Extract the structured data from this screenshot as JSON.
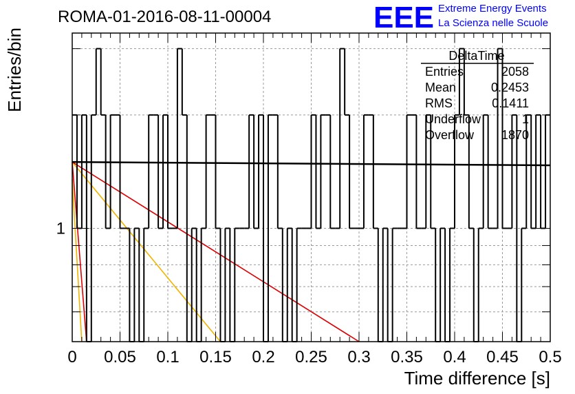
{
  "header": {
    "run_title": "ROMA-01-2016-08-11-00004",
    "logo_text": "EEE",
    "logo_line1": "Extreme Energy Events",
    "logo_line2": "La Scienza nelle Scuole"
  },
  "colors": {
    "histogram": "#000000",
    "fit_flat": "#000000",
    "fit_red": "#dd0000",
    "fit_orange": "#f0b400",
    "logo": "#0000ff",
    "grid": "#999999"
  },
  "stats_box": {
    "title": "DeltaTime",
    "rows": [
      {
        "label": "Entries",
        "value": "2058"
      },
      {
        "label": "Mean",
        "value": "0.2453"
      },
      {
        "label": "RMS",
        "value": "0.1411"
      },
      {
        "label": "Underflow",
        "value": "1"
      },
      {
        "label": "Overflow",
        "value": "1870"
      }
    ]
  },
  "chart_data": {
    "type": "histogram",
    "xlabel": "Time difference [s]",
    "ylabel": "Entries/bin",
    "xlim": [
      0,
      0.5
    ],
    "ylim": [
      0.5,
      3.3
    ],
    "log_y": true,
    "grid": true,
    "x_ticks": [
      "0",
      "0.05",
      "0.1",
      "0.15",
      "0.2",
      "0.25",
      "0.3",
      "0.35",
      "0.4",
      "0.45",
      "0.5"
    ],
    "y_tick_labels": [
      {
        "value": 1,
        "label": "1"
      }
    ],
    "bin_width": 0.005,
    "bin_values": [
      2,
      1,
      2,
      0,
      2,
      3,
      2,
      1,
      2,
      2,
      1,
      1,
      0,
      1,
      0,
      1,
      2,
      2,
      1,
      2,
      1,
      1,
      3,
      2,
      0,
      1,
      0,
      1,
      2,
      2,
      1,
      0,
      1,
      0,
      1,
      1,
      1,
      2,
      1,
      2,
      0,
      2,
      2,
      1,
      0,
      1,
      0,
      1,
      1,
      1,
      2,
      1,
      2,
      2,
      1,
      1,
      3,
      2,
      1,
      1,
      1,
      2,
      2,
      1,
      0,
      1,
      0,
      1,
      1,
      1,
      2,
      2,
      1,
      1,
      2,
      1,
      0,
      1,
      0,
      1,
      2,
      3,
      2,
      1,
      0,
      1,
      2,
      1,
      1,
      3,
      1,
      1,
      2,
      0,
      1,
      2,
      1,
      2,
      1,
      2
    ],
    "fits": [
      {
        "color": "red",
        "points": [
          [
            0,
            1.5
          ],
          [
            0.015,
            0.5
          ]
        ]
      },
      {
        "color": "orange",
        "points": [
          [
            0,
            1.35
          ],
          [
            0.01,
            0.5
          ]
        ]
      },
      {
        "color": "orange",
        "points": [
          [
            0,
            1.5
          ],
          [
            0.155,
            0.5
          ]
        ]
      },
      {
        "color": "red",
        "points": [
          [
            0,
            1.5
          ],
          [
            0.3,
            0.5
          ]
        ]
      },
      {
        "color": "black",
        "points": [
          [
            0,
            1.5
          ],
          [
            0.5,
            1.47
          ]
        ]
      }
    ]
  }
}
